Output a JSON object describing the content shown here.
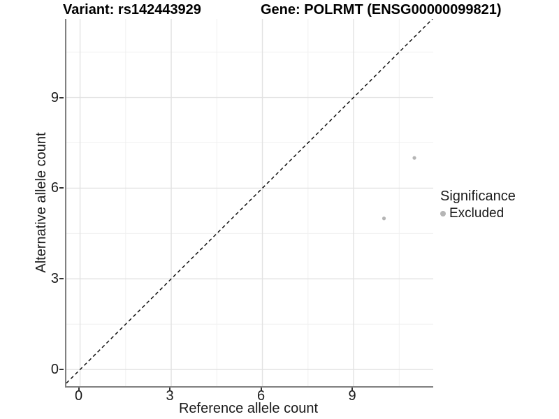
{
  "chart_data": {
    "type": "scatter",
    "variant_title": "Variant: rs142443929",
    "gene_title": "Gene: POLRMT (ENSG00000099821)",
    "xlabel": "Reference allele count",
    "ylabel": "Alternative allele count",
    "xlim": [
      -0.45,
      11.62
    ],
    "ylim": [
      -0.55,
      11.6
    ],
    "x_major_ticks": [
      0,
      3,
      6,
      9
    ],
    "y_major_ticks": [
      0,
      3,
      6,
      9
    ],
    "x_minor_ticks": [
      1.5,
      4.5,
      7.5,
      10.5
    ],
    "y_minor_ticks": [
      1.5,
      4.5,
      7.5,
      10.5
    ],
    "grid": true,
    "reference_line": {
      "slope": 1,
      "intercept": 0,
      "style": "dashed"
    },
    "series": [
      {
        "name": "Excluded",
        "points": [
          {
            "x": 10,
            "y": 5
          },
          {
            "x": 11,
            "y": 7
          }
        ]
      }
    ],
    "legend": {
      "title": "Significance",
      "position": "right",
      "items": [
        {
          "label": "Excluded",
          "color": "#b5b5b5"
        }
      ]
    },
    "colors": {
      "point": "#b5b5b5",
      "major_grid": "#e2e2e2",
      "minor_grid": "#f0f0f0",
      "axis_line": "#808080",
      "tick_mark": "#333333",
      "reference_line": "#111111",
      "text": "#1a1a1a"
    }
  }
}
